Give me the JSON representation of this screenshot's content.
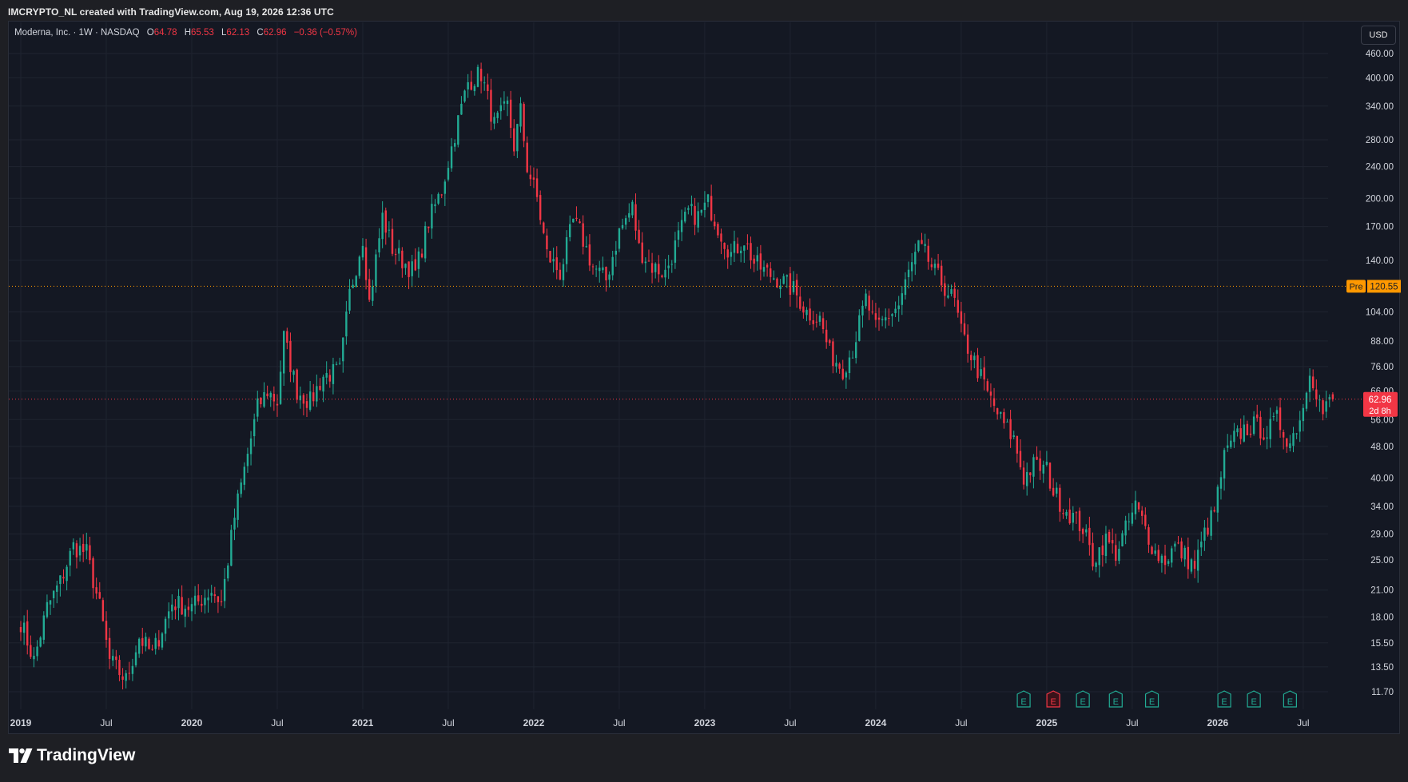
{
  "header": {
    "attribution": "IMCRYPTO_NL created with TradingView.com, Aug 19, 2026 12:36 UTC"
  },
  "legend": {
    "symbol": "Moderna, Inc. · 1W · NASDAQ",
    "open_label": "O",
    "open": "64.78",
    "high_label": "H",
    "high": "65.53",
    "low_label": "L",
    "low": "62.13",
    "close_label": "C",
    "close": "62.96",
    "change": "−0.36 (−0.57%)"
  },
  "currency_button": "USD",
  "branding": {
    "logo_text": "TradingView"
  },
  "colors": {
    "background": "#141823",
    "grid": "#1f2430",
    "up": "#22ab94",
    "down": "#f23645",
    "pre_line": "#ff9800",
    "last_line": "#f23645",
    "axis_text": "#d1d4dc"
  },
  "chart_data": {
    "type": "candlestick",
    "y_scale": "log",
    "ylim": [
      11.0,
      470.0
    ],
    "y_ticks": [
      "460.00",
      "400.00",
      "340.00",
      "280.00",
      "240.00",
      "200.00",
      "170.00",
      "140.00",
      "104.00",
      "88.00",
      "76.00",
      "66.00",
      "56.00",
      "48.00",
      "40.00",
      "34.00",
      "29.00",
      "25.00",
      "21.00",
      "18.00",
      "15.50",
      "13.50",
      "11.70"
    ],
    "x_labels": [
      {
        "label": "2019",
        "week": 0
      },
      {
        "label": "Jul",
        "week": 26
      },
      {
        "label": "2020",
        "week": 52
      },
      {
        "label": "Jul",
        "week": 78
      },
      {
        "label": "2021",
        "week": 104
      },
      {
        "label": "Jul",
        "week": 130
      },
      {
        "label": "2022",
        "week": 156
      },
      {
        "label": "Jul",
        "week": 182
      },
      {
        "label": "2023",
        "week": 208
      },
      {
        "label": "Jul",
        "week": 234
      },
      {
        "label": "2024",
        "week": 260
      },
      {
        "label": "Jul",
        "week": 286
      },
      {
        "label": "2025",
        "week": 312
      },
      {
        "label": "Jul",
        "week": 338
      },
      {
        "label": "2026",
        "week": 364
      },
      {
        "label": "Jul",
        "week": 390
      }
    ],
    "anchors": [
      [
        0,
        17.5
      ],
      [
        4,
        14
      ],
      [
        8,
        19
      ],
      [
        12,
        22
      ],
      [
        16,
        27
      ],
      [
        20,
        26
      ],
      [
        24,
        19
      ],
      [
        27,
        14
      ],
      [
        32,
        12.5
      ],
      [
        36,
        16
      ],
      [
        40,
        14.5
      ],
      [
        46,
        19.5
      ],
      [
        52,
        19
      ],
      [
        58,
        21
      ],
      [
        61,
        19.5
      ],
      [
        65,
        32
      ],
      [
        68,
        42
      ],
      [
        72,
        60
      ],
      [
        75,
        66
      ],
      [
        78,
        62
      ],
      [
        80,
        90
      ],
      [
        84,
        66
      ],
      [
        88,
        62
      ],
      [
        92,
        72
      ],
      [
        97,
        74
      ],
      [
        100,
        115
      ],
      [
        104,
        160
      ],
      [
        106,
        110
      ],
      [
        110,
        180
      ],
      [
        113,
        150
      ],
      [
        116,
        140
      ],
      [
        120,
        130
      ],
      [
        124,
        175
      ],
      [
        128,
        210
      ],
      [
        132,
        290
      ],
      [
        136,
        390
      ],
      [
        140,
        410
      ],
      [
        144,
        305
      ],
      [
        148,
        340
      ],
      [
        150,
        270
      ],
      [
        152,
        330
      ],
      [
        154,
        240
      ],
      [
        157,
        200
      ],
      [
        160,
        145
      ],
      [
        164,
        130
      ],
      [
        168,
        175
      ],
      [
        170,
        165
      ],
      [
        174,
        135
      ],
      [
        178,
        125
      ],
      [
        182,
        165
      ],
      [
        186,
        190
      ],
      [
        188,
        150
      ],
      [
        192,
        135
      ],
      [
        196,
        130
      ],
      [
        200,
        160
      ],
      [
        203,
        185
      ],
      [
        206,
        180
      ],
      [
        209,
        195
      ],
      [
        212,
        170
      ],
      [
        216,
        145
      ],
      [
        220,
        158
      ],
      [
        223,
        138
      ],
      [
        227,
        130
      ],
      [
        231,
        125
      ],
      [
        235,
        118
      ],
      [
        239,
        104
      ],
      [
        243,
        100
      ],
      [
        246,
        82
      ],
      [
        250,
        75
      ],
      [
        253,
        84
      ],
      [
        257,
        112
      ],
      [
        260,
        94
      ],
      [
        263,
        100
      ],
      [
        267,
        108
      ],
      [
        270,
        130
      ],
      [
        273,
        150
      ],
      [
        275,
        145
      ],
      [
        278,
        130
      ],
      [
        281,
        120
      ],
      [
        284,
        110
      ],
      [
        286,
        92
      ],
      [
        290,
        78
      ],
      [
        294,
        65
      ],
      [
        298,
        56
      ],
      [
        302,
        50
      ],
      [
        305,
        40
      ],
      [
        308,
        43
      ],
      [
        312,
        42
      ],
      [
        314,
        37
      ],
      [
        317,
        34
      ],
      [
        320,
        32
      ],
      [
        323,
        30
      ],
      [
        326,
        25
      ],
      [
        330,
        28
      ],
      [
        333,
        26
      ],
      [
        337,
        31
      ],
      [
        339,
        34
      ],
      [
        342,
        30
      ],
      [
        345,
        26
      ],
      [
        348,
        25
      ],
      [
        351,
        27
      ],
      [
        354,
        25.5
      ],
      [
        357,
        24
      ],
      [
        360,
        29
      ],
      [
        363,
        33
      ],
      [
        366,
        45
      ],
      [
        369,
        50
      ],
      [
        372,
        53
      ],
      [
        375,
        54
      ],
      [
        379,
        52
      ],
      [
        382,
        56
      ],
      [
        386,
        49
      ],
      [
        388,
        54
      ],
      [
        390,
        60
      ],
      [
        392,
        76
      ],
      [
        394,
        66
      ],
      [
        396,
        58
      ],
      [
        398,
        62
      ],
      [
        399,
        62.96
      ]
    ],
    "earnings_markers": [
      {
        "week": 305,
        "label": "E",
        "color": "up"
      },
      {
        "week": 314,
        "label": "E",
        "color": "down"
      },
      {
        "week": 323,
        "label": "E",
        "color": "up"
      },
      {
        "week": 333,
        "label": "E",
        "color": "up"
      },
      {
        "week": 344,
        "label": "E",
        "color": "up"
      },
      {
        "week": 366,
        "label": "E",
        "color": "up"
      },
      {
        "week": 375,
        "label": "E",
        "color": "up"
      },
      {
        "week": 386,
        "label": "E",
        "color": "up"
      }
    ],
    "pre_market": {
      "label": "Pre",
      "value": "120.55",
      "price": 120.55
    },
    "last_price": {
      "value": "62.96",
      "countdown": "2d 8h",
      "price": 62.96
    }
  }
}
